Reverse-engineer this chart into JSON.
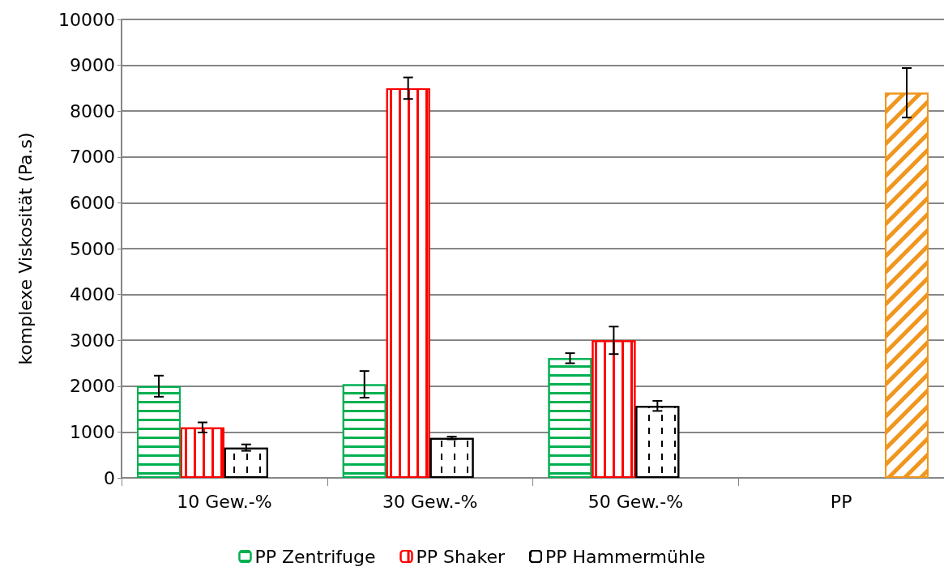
{
  "chart_data": {
    "type": "bar",
    "ylabel": "komplexe Viskosität (Pa.s)",
    "categories": [
      "10 Gew.-%",
      "30 Gew.-%",
      "50 Gew.-%",
      "PP"
    ],
    "series": [
      {
        "name": "PP Zentrifuge",
        "color": "#00b050",
        "values": [
          2000,
          2040,
          2610,
          null
        ],
        "errors": [
          230,
          290,
          110,
          null
        ]
      },
      {
        "name": "PP Shaker",
        "color": "#ff0000",
        "values": [
          1100,
          8500,
          3000,
          null
        ],
        "errors": [
          110,
          235,
          300,
          null
        ]
      },
      {
        "name": "PP Hammermühle",
        "color": "#000000",
        "values": [
          660,
          870,
          1570,
          null
        ],
        "errors": [
          70,
          30,
          110,
          null
        ]
      },
      {
        "color": "#f0961e",
        "values": [
          null,
          null,
          null,
          8400
        ],
        "errors": [
          null,
          null,
          null,
          540
        ]
      }
    ],
    "ylim": [
      0,
      10000
    ],
    "yticks": [
      0,
      1000,
      2000,
      3000,
      4000,
      5000,
      6000,
      7000,
      8000,
      9000,
      10000
    ],
    "grid": "y",
    "legend": "bottom"
  }
}
